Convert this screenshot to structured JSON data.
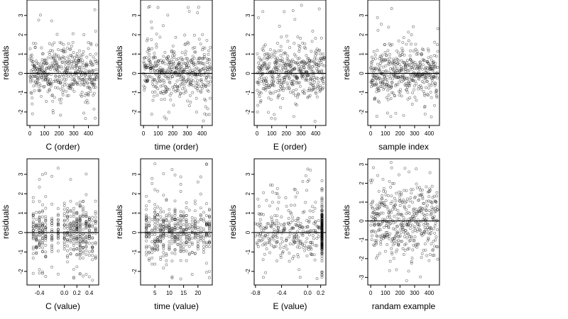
{
  "chart_data": [
    {
      "type": "scatter",
      "xlabel": "C (order)",
      "ylabel": "residuals",
      "xlim": [
        -20,
        470
      ],
      "ylim": [
        -2.7,
        3.8
      ],
      "xticks": [
        0,
        100,
        200,
        300,
        400
      ],
      "xtick_labels": [
        "0",
        "100",
        "200",
        "300",
        "400"
      ],
      "yticks": [
        -2,
        -1,
        0,
        1,
        2,
        3
      ],
      "ytick_labels": [
        "-2",
        "-1",
        "0",
        "1",
        "2",
        "3"
      ],
      "hline": 0,
      "x_kind": "index",
      "n_points": 460
    },
    {
      "type": "scatter",
      "xlabel": "time (order)",
      "ylabel": "residuals",
      "xlim": [
        -20,
        470
      ],
      "ylim": [
        -2.7,
        3.8
      ],
      "xticks": [
        0,
        100,
        200,
        300,
        400
      ],
      "xtick_labels": [
        "0",
        "100",
        "200",
        "300",
        "400"
      ],
      "yticks": [
        -2,
        -1,
        0,
        1,
        2,
        3
      ],
      "ytick_labels": [
        "-2",
        "-1",
        "0",
        "1",
        "2",
        "3"
      ],
      "hline": 0,
      "x_kind": "index",
      "n_points": 460
    },
    {
      "type": "scatter",
      "xlabel": "E (order)",
      "ylabel": "residuals",
      "xlim": [
        -20,
        470
      ],
      "ylim": [
        -2.7,
        3.8
      ],
      "xticks": [
        0,
        100,
        200,
        300,
        400
      ],
      "xtick_labels": [
        "0",
        "100",
        "200",
        "300",
        "400"
      ],
      "yticks": [
        -2,
        -1,
        0,
        1,
        2,
        3
      ],
      "ytick_labels": [
        "-2",
        "-1",
        "0",
        "1",
        "2",
        "3"
      ],
      "hline": 0,
      "x_kind": "index",
      "n_points": 460
    },
    {
      "type": "scatter",
      "xlabel": "sample index",
      "ylabel": "residuals",
      "xlim": [
        -20,
        470
      ],
      "ylim": [
        -2.7,
        3.8
      ],
      "xticks": [
        0,
        100,
        200,
        300,
        400
      ],
      "xtick_labels": [
        "0",
        "100",
        "200",
        "300",
        "400"
      ],
      "yticks": [
        -2,
        -1,
        0,
        1,
        2,
        3
      ],
      "ytick_labels": [
        "-2",
        "-1",
        "0",
        "1",
        "2",
        "3"
      ],
      "hline": 0,
      "x_kind": "index",
      "n_points": 460
    },
    {
      "type": "scatter",
      "xlabel": "C (value)",
      "ylabel": "residuals",
      "xlim": [
        -0.6,
        0.55
      ],
      "ylim": [
        -2.7,
        3.8
      ],
      "xticks": [
        -0.4,
        0.0,
        0.2,
        0.4
      ],
      "xtick_labels": [
        "-0.4",
        "0.0",
        "0.2",
        "0.4"
      ],
      "yticks": [
        -2,
        -1,
        0,
        1,
        2,
        3
      ],
      "ytick_labels": [
        "-2",
        "-1",
        "0",
        "1",
        "2",
        "3"
      ],
      "hline": 0,
      "x_kind": "discrete",
      "x_levels": [
        -0.5,
        -0.45,
        -0.4,
        -0.35,
        -0.3,
        -0.2,
        -0.1,
        0.0,
        0.05,
        0.1,
        0.15,
        0.2,
        0.25,
        0.3,
        0.35,
        0.4,
        0.45,
        0.5
      ],
      "n_points": 460
    },
    {
      "type": "scatter",
      "xlabel": "time (value)",
      "ylabel": "residuals",
      "xlim": [
        0,
        25
      ],
      "ylim": [
        -2.7,
        3.8
      ],
      "xticks": [
        5,
        10,
        15,
        20
      ],
      "xtick_labels": [
        "5",
        "10",
        "15",
        "20"
      ],
      "yticks": [
        -2,
        -1,
        0,
        1,
        2,
        3
      ],
      "ytick_labels": [
        "-2",
        "-1",
        "0",
        "1",
        "2",
        "3"
      ],
      "hline": 0,
      "x_kind": "discrete",
      "x_levels": [
        2,
        3,
        4,
        5,
        6,
        7,
        8,
        9,
        10,
        11,
        12,
        13,
        14,
        15,
        16,
        17,
        18,
        19,
        20,
        21,
        22,
        23,
        24
      ],
      "n_points": 460
    },
    {
      "type": "scatter",
      "xlabel": "E (value)",
      "ylabel": "residuals",
      "xlim": [
        -0.82,
        0.28
      ],
      "ylim": [
        -2.7,
        3.8
      ],
      "xticks": [
        -0.8,
        -0.4,
        0.0,
        0.2
      ],
      "xtick_labels": [
        "-0.8",
        "-0.4",
        "0.0",
        "0.2"
      ],
      "yticks": [
        -2,
        -1,
        0,
        1,
        2,
        3
      ],
      "ytick_labels": [
        "-2",
        "-1",
        "0",
        "1",
        "2",
        "3"
      ],
      "hline": 0,
      "x_kind": "skewed",
      "x_cluster": 0.22,
      "n_points": 460
    },
    {
      "type": "scatter",
      "xlabel": "randam example",
      "ylabel": "residuals",
      "xlim": [
        -20,
        470
      ],
      "ylim": [
        -3.4,
        3.3
      ],
      "xticks": [
        0,
        100,
        200,
        300,
        400
      ],
      "xtick_labels": [
        "0",
        "100",
        "200",
        "300",
        "400"
      ],
      "yticks": [
        -3,
        -2,
        -1,
        0,
        1,
        2,
        3
      ],
      "ytick_labels": [
        "-3",
        "-2",
        "-1",
        "0",
        "1",
        "2",
        "3"
      ],
      "hline": 0,
      "x_kind": "index",
      "n_points": 460
    }
  ]
}
